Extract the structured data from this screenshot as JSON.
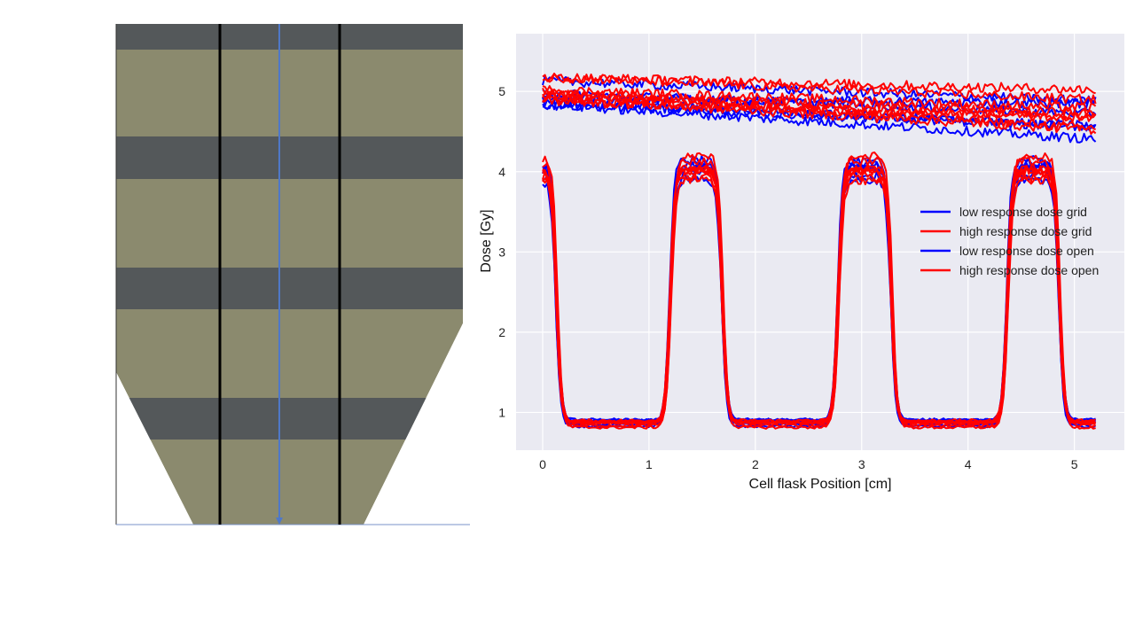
{
  "colors": {
    "film": "#8b8a6e",
    "film_band": "#54585a",
    "profile_arrow": "#4f78c8",
    "plot_bg": "#eaeaf2",
    "grid": "#ffffff",
    "low_response": "#0000ff",
    "high_response": "#ff0000"
  },
  "chart_data": {
    "type": "line",
    "xlabel": "Cell flask Position [cm]",
    "ylabel": "Dose [Gy]",
    "xlim": [
      -0.25,
      5.47
    ],
    "ylim": [
      0.53,
      5.72
    ],
    "xticks": [
      "0",
      "1",
      "2",
      "3",
      "4",
      "5"
    ],
    "yticks": [
      "1",
      "2",
      "3",
      "4",
      "5"
    ],
    "grid": true,
    "legend_position": "center-right",
    "x_range": [
      0,
      5.2
    ],
    "open_field": {
      "low_response_level": 5.0,
      "high_response_level": 5.02,
      "slope_per_cm": -0.05
    },
    "grid_field": {
      "valley_dose": 0.86,
      "peak_dose": 4.05,
      "peaks": [
        {
          "from": -0.1,
          "to": 0.13
        },
        {
          "from": 1.2,
          "to": 1.69
        },
        {
          "from": 2.78,
          "to": 3.28
        },
        {
          "from": 4.37,
          "to": 4.86
        }
      ]
    },
    "series": [
      {
        "name": "low response dose grid",
        "color": "#0000ff",
        "field": "grid",
        "curves": 6
      },
      {
        "name": "high response dose grid",
        "color": "#ff0000",
        "field": "grid",
        "curves": 8
      },
      {
        "name": "low response dose open",
        "color": "#0000ff",
        "field": "open",
        "curves": 6
      },
      {
        "name": "high response dose open",
        "color": "#ff0000",
        "field": "open",
        "curves": 8
      }
    ]
  }
}
